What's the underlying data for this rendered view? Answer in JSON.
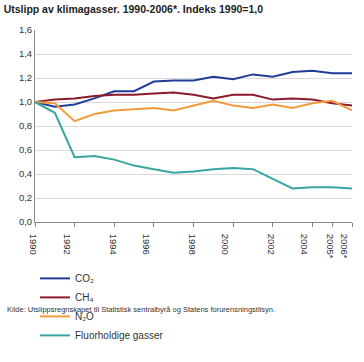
{
  "chart_data": {
    "type": "line",
    "title": "Utslipp av klimagasser. 1990-2006*. Indeks 1990=1,0",
    "source": "Kilde: Utslippsregnskapet til Statistisk sentralbyrå og Statens forurensningstilsyn.",
    "x": [
      1990,
      1991,
      1992,
      1993,
      1994,
      1995,
      1996,
      1997,
      1998,
      1999,
      2000,
      2001,
      2002,
      2003,
      2004,
      2005,
      2006
    ],
    "series": [
      {
        "name": "CO₂",
        "color": "#1f3d99",
        "values": [
          1.0,
          0.96,
          0.98,
          1.03,
          1.09,
          1.09,
          1.17,
          1.18,
          1.18,
          1.21,
          1.19,
          1.23,
          1.21,
          1.25,
          1.26,
          1.24,
          1.24
        ]
      },
      {
        "name": "CH₄",
        "color": "#8b1a2a",
        "values": [
          1.0,
          1.02,
          1.03,
          1.05,
          1.06,
          1.06,
          1.07,
          1.08,
          1.06,
          1.03,
          1.06,
          1.06,
          1.02,
          1.03,
          1.02,
          0.99,
          0.97
        ]
      },
      {
        "name": "N₂O",
        "color": "#f39a3b",
        "values": [
          1.0,
          0.99,
          0.84,
          0.9,
          0.93,
          0.94,
          0.95,
          0.93,
          0.97,
          1.01,
          0.97,
          0.95,
          0.98,
          0.95,
          0.99,
          1.01,
          0.93
        ]
      },
      {
        "name": "Fluorholdige gasser",
        "color": "#3aa5a0",
        "values": [
          1.0,
          0.91,
          0.54,
          0.55,
          0.52,
          0.47,
          0.44,
          0.41,
          0.42,
          0.44,
          0.45,
          0.44,
          0.36,
          0.28,
          0.29,
          0.29,
          0.28
        ]
      }
    ],
    "xlim": [
      1990,
      2006
    ],
    "xticks": [
      1990,
      1992,
      1994,
      1996,
      1998,
      2000,
      2002,
      2004,
      {
        "value": 2005,
        "label": "2005*"
      },
      {
        "value": 2006,
        "label": "2006*"
      }
    ],
    "ylim": [
      0,
      1.6
    ],
    "yticks": [
      {
        "value": 0,
        "label": "0,0"
      },
      {
        "value": 0.2,
        "label": "0,2"
      },
      {
        "value": 0.4,
        "label": "0,4"
      },
      {
        "value": 0.6,
        "label": "0,6"
      },
      {
        "value": 0.8,
        "label": "0,8"
      },
      {
        "value": 1.0,
        "label": "1,0"
      },
      {
        "value": 1.2,
        "label": "1,2"
      },
      {
        "value": 1.4,
        "label": "1,4"
      },
      {
        "value": 1.6,
        "label": "1,6"
      }
    ],
    "grid": true,
    "legend": "bottom"
  }
}
